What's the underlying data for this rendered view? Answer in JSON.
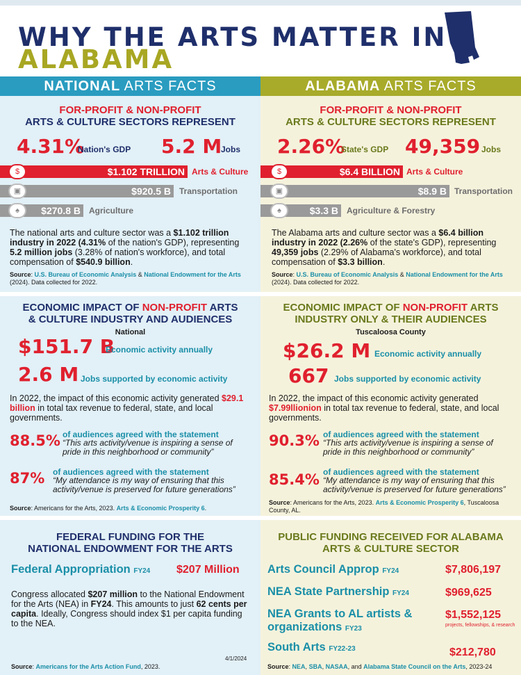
{
  "header": {
    "title_line1": "WHY THE ARTS MATTER IN",
    "title_line2": "ALABAMA"
  },
  "national": {
    "band_bold": "NATIONAL",
    "band_rest": " ARTS FACTS",
    "sec1_title_a": "FOR-PROFIT & NON-PROFIT",
    "sec1_title_b": "ARTS & CULTURE SECTORS REPRESENT",
    "gdp_value": "4.31%",
    "gdp_label": "Nation's GDP",
    "jobs_value": "5.2 M",
    "jobs_label": "Jobs",
    "bars": [
      {
        "value": "$1.102 TRILLION",
        "label": "Arts & Culture",
        "icon": "money-icon"
      },
      {
        "value": "$920.5 B",
        "label": "Transportation",
        "icon": "bus-icon"
      },
      {
        "value": "$270.8 B",
        "label": "Agriculture",
        "icon": "leaf-icon"
      }
    ],
    "para1_a": "The national arts and culture sector was a ",
    "para1_b": "$1.102 trillion industry in 2022 (4.31%",
    "para1_c": " of the nation's GDP),  representing ",
    "para1_d": "5.2 million jobs",
    "para1_e": " (3.28% of nation's workforce), and total compensation of ",
    "para1_f": "$540.9 billion",
    "para1_g": ".",
    "source1_a": "Source",
    "source1_b": ": ",
    "source1_c": "U.S. Bureau of Economic Analysis",
    "source1_d": " & ",
    "source1_e": "National Endowment for the Arts",
    "source1_f": " (2024). Data collected for 2022.",
    "sec2_title_a": "ECONOMIC IMPACT OF ",
    "sec2_title_b": "NON-PROFIT",
    "sec2_title_c": " ARTS",
    "sec2_title_d": "& CULTURE INDUSTRY AND AUDIENCES",
    "sec2_sub": "National",
    "econ_value": "$151.7 B",
    "econ_label": "Economic activity annually",
    "jobs2_value": "2.6 M",
    "jobs2_label": "Jobs supported by economic activity",
    "para2_a": "In 2022, the impact of this economic activity generated ",
    "para2_b": "$29.1 billion",
    "para2_c": " in total tax revenue to federal, state, and local governments.",
    "pct1": "88.5%",
    "pct1_head": "of audiences agreed with the statement",
    "pct1_quote": "“This arts activity/venue is inspiring a sense of pride in this neighborhood or community”",
    "pct2": "87%",
    "pct2_head": "of audiences agreed with the statement",
    "pct2_quote": "“My attendance is my way of ensuring that this activity/venue is preserved for future generations”",
    "source2_a": "Source",
    "source2_b": ": Americans for the Arts, 2023. ",
    "source2_c": "Arts & Economic Prosperity 6",
    "source2_d": ".",
    "sec3_title_a": "FEDERAL FUNDING FOR THE",
    "sec3_title_b": "NATIONAL ENDOWMENT FOR THE ARTS",
    "fed_label": "Federal Appropriation",
    "fed_fy": "FY24",
    "fed_value": "$207 Million",
    "para3_a": "Congress allocated ",
    "para3_b": "$207 million",
    "para3_c": " to the National Endowment for the Arts (NEA) in ",
    "para3_d": "FY24",
    "para3_e": ". This amounts to just ",
    "para3_f": "62 cents per capita",
    "para3_g": ". Ideally, Congress should index $1 per capita funding to the NEA.",
    "date": "4/1/2024",
    "source3_a": "Source",
    "source3_b": ": ",
    "source3_c": "Americans for the Arts Action Fund",
    "source3_d": ", 2023."
  },
  "alabama": {
    "band_bold": "ALABAMA",
    "band_rest": " ARTS FACTS",
    "sec1_title_a": "FOR-PROFIT & NON-PROFIT",
    "sec1_title_b": "ARTS & CULTURE SECTORS REPRESENT",
    "gdp_value": "2.26%",
    "gdp_label": "State's GDP",
    "jobs_value": "49,359",
    "jobs_label": "Jobs",
    "bars": [
      {
        "value": "$6.4 BILLION",
        "label": "Arts & Culture",
        "icon": "money-icon"
      },
      {
        "value": "$8.9 B",
        "label": "Transportation",
        "icon": "bus-icon"
      },
      {
        "value": "$3.3 B",
        "label": "Agriculture & Forestry",
        "icon": "leaf-icon"
      }
    ],
    "para1_a": "The Alabama arts and culture sector was a ",
    "para1_b": "$6.4 billion industry in 2022 (2.26%",
    "para1_c": " of the state's GDP), representing ",
    "para1_d": "49,359 jobs",
    "para1_e": " (2.29% of Alabama's workforce), and total compensation of ",
    "para1_f": "$3.3 billion",
    "para1_g": ".",
    "source1_a": "Source",
    "source1_b": ": ",
    "source1_c": "U.S. Bureau of Economic Analysis",
    "source1_d": " & ",
    "source1_e": "National Endowment for the Arts",
    "source1_f": " (2024). Data collected for 2022.",
    "sec2_title_a": "ECONOMIC IMPACT OF ",
    "sec2_title_b": "NON-PROFIT",
    "sec2_title_c": " ARTS",
    "sec2_title_d": "INDUSTRY ONLY & THEIR AUDIENCES",
    "sec2_sub": "Tuscaloosa County",
    "econ_value": "$26.2 M",
    "econ_label": "Economic activity annually",
    "jobs2_value": "667",
    "jobs2_label": "Jobs supported by economic activity",
    "para2_a": "In 2022, the impact of this economic activity generated ",
    "para2_b": "$7.99llionion",
    "para2_c": " in total tax revenue to federal, state, and local governments.",
    "pct1": "90.3%",
    "pct1_head": "of audiences agreed with the statement",
    "pct1_quote": "“This arts activity/venue is inspiring a sense of pride in this neighborhood or community”",
    "pct2": "85.4%",
    "pct2_head": "of audiences agreed with the statement",
    "pct2_quote": "“My attendance is my way of ensuring that this activity/venue is preserved for future generations”",
    "source2_a": "Source",
    "source2_b": ": Americans for the Arts, 2023. ",
    "source2_c": "Arts & Economic Prosperity 6",
    "source2_d": ", Tuscaloosa County, AL.",
    "sec3_title_a": "PUBLIC FUNDING RECEIVED FOR ALABAMA",
    "sec3_title_b": "ARTS & CULTURE SECTOR",
    "funds": [
      {
        "label": "Arts Council Approp",
        "fy": "FY24",
        "value": "$7,806,197"
      },
      {
        "label": "NEA State Partnership",
        "fy": "FY24",
        "value": "$969,625"
      },
      {
        "label": "NEA Grants to AL artists &",
        "label2": "organizations",
        "fy": "FY23",
        "value": "$1,552,125",
        "note": "projects, fellowships, & research"
      },
      {
        "label": "South Arts",
        "fy": "FY22-23",
        "value": "$212,780"
      }
    ],
    "source3_a": "Source",
    "source3_b": ": ",
    "source3_c": "NEA",
    "source3_d": ", ",
    "source3_e": "SBA",
    "source3_f": ", ",
    "source3_g": "NASAA",
    "source3_h": ", and ",
    "source3_i": "Alabama State Council on the Arts",
    "source3_j": ", 2023-24"
  },
  "colors": {
    "navy": "#1f2f6b",
    "olive": "#a8a723",
    "red": "#e0202e",
    "teal": "#1a8fa8",
    "blue_band": "#2a9cc0",
    "olive_band": "#a8ab2a"
  }
}
